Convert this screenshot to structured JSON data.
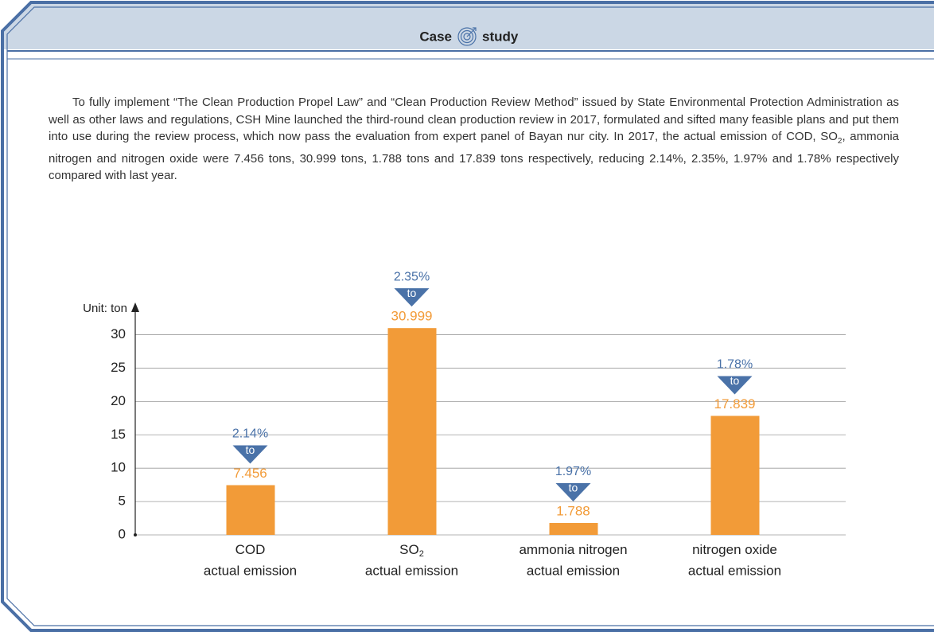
{
  "header": {
    "title_left": "Case",
    "title_right": "study"
  },
  "paragraph": [
    "To fully implement “The Clean Production Propel Law” and “Clean Production Review Method” issued by State Environmental Protection Administration as well as other laws and regulations, CSH Mine launched the third-round clean production review in 2017, formulated and sifted many feasible plans and put them into use during the review process, which now pass the evaluation from expert panel of Bayan nur city. In 2017, the actual emission of COD, SO",
    "2",
    ", ammonia nitrogen and nitrogen oxide were 7.456 tons, 30.999 tons, 1.788 tons and 17.839 tons respectively, reducing 2.14%, 2.35%, 1.97% and 1.78% respectively compared with last year."
  ],
  "chart_data": {
    "type": "bar",
    "y_label": "Unit: ton",
    "categories": [
      {
        "name": "COD",
        "line2": "actual emission"
      },
      {
        "name": "SO",
        "subscript": "2",
        "line2": "actual emission"
      },
      {
        "name": "ammonia nitrogen",
        "line2": "actual emission"
      },
      {
        "name": "nitrogen oxide",
        "line2": "actual emission"
      }
    ],
    "values": [
      7.456,
      30.999,
      1.788,
      17.839
    ],
    "color": "#f29b38",
    "reductions": [
      2.14,
      2.35,
      1.97,
      1.78
    ],
    "reduction_labels": [
      "2.14%",
      "2.35%",
      "1.97%",
      "1.78%"
    ],
    "reduction_color": "#4a72a8",
    "arrow_label": "to",
    "ylim": [
      0,
      34.6
    ],
    "yticks": [
      0,
      5,
      10,
      15,
      20,
      25,
      30
    ],
    "grid": true
  }
}
